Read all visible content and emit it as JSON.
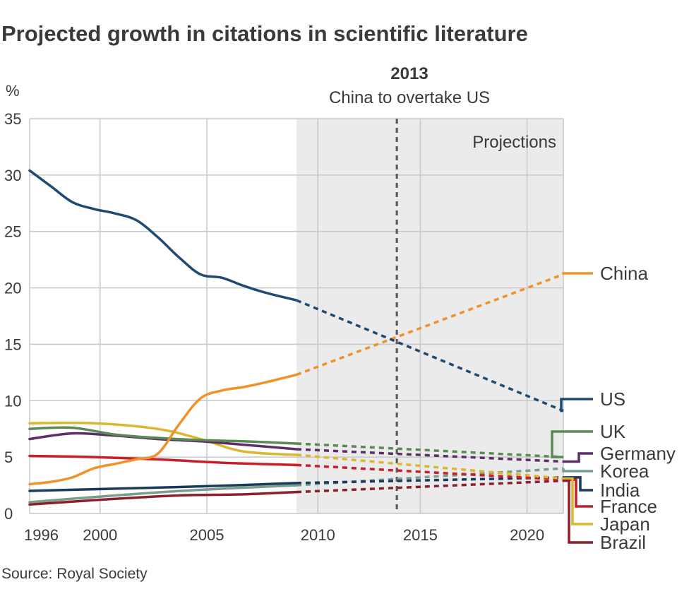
{
  "chart_data": {
    "type": "line",
    "title": "Projected growth in citations in scientific literature",
    "ylabel": "%",
    "xlabel": "",
    "xlim": [
      1996,
      2021
    ],
    "ylim": [
      0,
      35
    ],
    "yticks": [
      0,
      5,
      10,
      15,
      20,
      25,
      30,
      35
    ],
    "xticks": [
      {
        "label": "1996",
        "value": 1996
      },
      {
        "label": "2000",
        "value": 1999.3
      },
      {
        "label": "2005",
        "value": 2004.3
      },
      {
        "label": "2010",
        "value": 2009.5
      },
      {
        "label": "2015",
        "value": 2014.3
      },
      {
        "label": "2020",
        "value": 2019.3
      }
    ],
    "grid": true,
    "projection_start": 2008.5,
    "projection_label": "Projections",
    "annotation": {
      "year": 2013.2,
      "title": "2013",
      "text": "China to overtake US"
    },
    "series": [
      {
        "name": "US",
        "color": "#1f4a73",
        "actual": [
          [
            1996,
            30.4
          ],
          [
            1997,
            29.0
          ],
          [
            1998,
            27.6
          ],
          [
            1999,
            27.0
          ],
          [
            2000,
            26.6
          ],
          [
            2001,
            26.0
          ],
          [
            2002,
            24.5
          ],
          [
            2003,
            22.7
          ],
          [
            2004,
            21.2
          ],
          [
            2005,
            20.9
          ],
          [
            2006,
            20.2
          ],
          [
            2007,
            19.6
          ],
          [
            2008.5,
            18.9
          ]
        ],
        "projected": [
          [
            2008.5,
            18.9
          ],
          [
            2021,
            9.1
          ]
        ]
      },
      {
        "name": "China",
        "color": "#f0912a",
        "actual": [
          [
            1996,
            2.6
          ],
          [
            1997,
            2.8
          ],
          [
            1998,
            3.2
          ],
          [
            1999,
            4.0
          ],
          [
            2000,
            4.4
          ],
          [
            2001,
            4.8
          ],
          [
            2002,
            5.3
          ],
          [
            2003,
            7.9
          ],
          [
            2004,
            10.2
          ],
          [
            2005,
            10.9
          ],
          [
            2006,
            11.2
          ],
          [
            2007,
            11.6
          ],
          [
            2008.5,
            12.3
          ]
        ],
        "projected": [
          [
            2008.5,
            12.3
          ],
          [
            2021,
            21.2
          ]
        ]
      },
      {
        "name": "UK",
        "color": "#5a8a54",
        "actual": [
          [
            1996,
            7.5
          ],
          [
            1998,
            7.6
          ],
          [
            2000,
            7.0
          ],
          [
            2002,
            6.7
          ],
          [
            2004,
            6.5
          ],
          [
            2006,
            6.4
          ],
          [
            2008.5,
            6.2
          ]
        ],
        "projected": [
          [
            2008.5,
            6.2
          ],
          [
            2021,
            5.0
          ]
        ]
      },
      {
        "name": "Germany",
        "color": "#5c2d68",
        "actual": [
          [
            1996,
            6.6
          ],
          [
            1998,
            7.1
          ],
          [
            2000,
            6.9
          ],
          [
            2002,
            6.6
          ],
          [
            2004,
            6.4
          ],
          [
            2006,
            6.1
          ],
          [
            2008.5,
            5.7
          ]
        ],
        "projected": [
          [
            2008.5,
            5.7
          ],
          [
            2021,
            4.6
          ]
        ]
      },
      {
        "name": "Korea",
        "color": "#7a9c8a",
        "actual": [
          [
            1996,
            1.0
          ],
          [
            2000,
            1.6
          ],
          [
            2004,
            2.1
          ],
          [
            2008.5,
            2.5
          ]
        ],
        "projected": [
          [
            2008.5,
            2.5
          ],
          [
            2021,
            4.0
          ]
        ]
      },
      {
        "name": "India",
        "color": "#1a3a5c",
        "actual": [
          [
            1996,
            2.0
          ],
          [
            2000,
            2.2
          ],
          [
            2004,
            2.4
          ],
          [
            2008.5,
            2.7
          ]
        ],
        "projected": [
          [
            2008.5,
            2.7
          ],
          [
            2021,
            3.2
          ]
        ]
      },
      {
        "name": "France",
        "color": "#c8202a",
        "actual": [
          [
            1996,
            5.1
          ],
          [
            1999,
            5.0
          ],
          [
            2002,
            4.8
          ],
          [
            2005,
            4.5
          ],
          [
            2008.5,
            4.3
          ]
        ],
        "projected": [
          [
            2008.5,
            4.3
          ],
          [
            2021,
            3.0
          ]
        ]
      },
      {
        "name": "Japan",
        "color": "#d9b830",
        "actual": [
          [
            1996,
            8.0
          ],
          [
            1999,
            8.0
          ],
          [
            2002,
            7.5
          ],
          [
            2004,
            6.6
          ],
          [
            2006,
            5.5
          ],
          [
            2008.5,
            5.2
          ]
        ],
        "projected": [
          [
            2008.5,
            5.2
          ],
          [
            2021,
            3.1
          ]
        ]
      },
      {
        "name": "Brazil",
        "color": "#8c1f2a",
        "actual": [
          [
            1996,
            0.8
          ],
          [
            2000,
            1.3
          ],
          [
            2003,
            1.6
          ],
          [
            2006,
            1.7
          ],
          [
            2008.5,
            1.9
          ]
        ],
        "projected": [
          [
            2008.5,
            1.9
          ],
          [
            2021,
            2.9
          ]
        ]
      }
    ],
    "source": "Source: Royal Society"
  }
}
